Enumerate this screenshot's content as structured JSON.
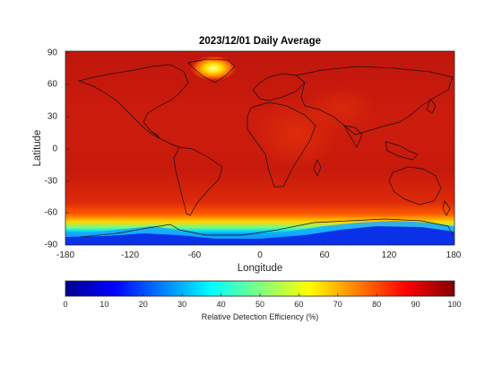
{
  "title": "2023/12/01 Daily Average",
  "axes": {
    "xlabel": "Longitude",
    "ylabel": "Latitude",
    "xticks": [
      "-180",
      "-120",
      "-60",
      "0",
      "60",
      "120",
      "180"
    ],
    "yticks": [
      "90",
      "60",
      "30",
      "0",
      "-30",
      "-60",
      "-90"
    ]
  },
  "colorbar": {
    "label": "Relative Detection Efficiency (%)",
    "ticks": [
      "0",
      "10",
      "20",
      "30",
      "40",
      "50",
      "60",
      "70",
      "80",
      "90",
      "100"
    ],
    "colormap": "jet"
  },
  "map": {
    "projection": "equirectangular",
    "lon_range": [
      -180,
      180
    ],
    "lat_range": [
      -90,
      90
    ],
    "dominant_color": "#c61a0c",
    "features": [
      "high efficiency (~90-95%) over most of the globe",
      "yellow hotspot over southern Greenland near 60N 40W",
      "efficiency falls off south of 60S through yellow, cyan to blue near Antarctica"
    ]
  }
}
